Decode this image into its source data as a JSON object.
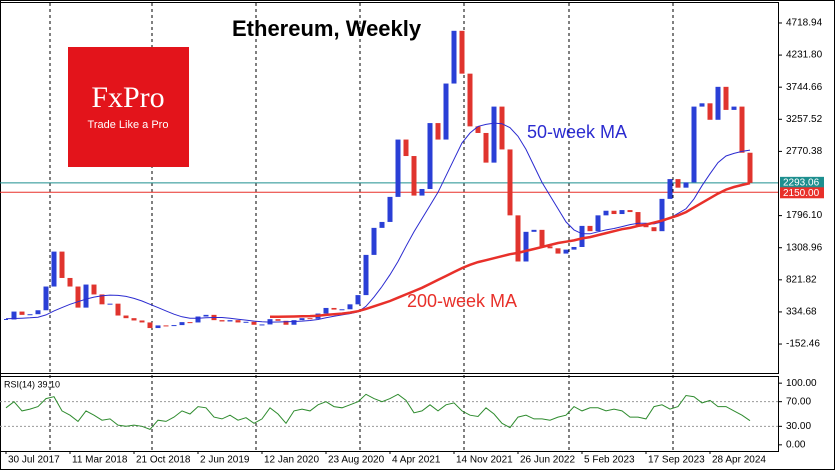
{
  "logo": {
    "name": "FxPro",
    "tagline": "Trade Like a Pro"
  },
  "chart_data": {
    "type": "candlestick",
    "title": "Ethereum, Weekly",
    "x": [
      0,
      4,
      8,
      12,
      16,
      20,
      24,
      28,
      32,
      36,
      40,
      44,
      48,
      52,
      56,
      60,
      64,
      68,
      72,
      76,
      80,
      84,
      88,
      92,
      96,
      100,
      104,
      108,
      112,
      116,
      120,
      124,
      128,
      132,
      136,
      140,
      144,
      148,
      152,
      156,
      160,
      164,
      168,
      172,
      176,
      180,
      184,
      188,
      192,
      196,
      200,
      204,
      208,
      212,
      216,
      220,
      224,
      228,
      232,
      236,
      240,
      244,
      248,
      252,
      256,
      260,
      264,
      268,
      272,
      276,
      280,
      284,
      288,
      292,
      296,
      300,
      304,
      308,
      312,
      316,
      320,
      324,
      328,
      332,
      336,
      340,
      344,
      348,
      352,
      356,
      360,
      364,
      368,
      372
    ],
    "xlim": [
      -3,
      386
    ],
    "xticks": [
      {
        "value": 0,
        "label": "30 Jul 2017"
      },
      {
        "value": 32,
        "label": "11 Mar 2018"
      },
      {
        "value": 64,
        "label": "21 Oct 2018"
      },
      {
        "value": 96,
        "label": "2 Jun 2019"
      },
      {
        "value": 128,
        "label": "12 Jan 2020"
      },
      {
        "value": 160,
        "label": "23 Aug 2020"
      },
      {
        "value": 192,
        "label": "4 Apr 2021"
      },
      {
        "value": 224,
        "label": "14 Nov 2021"
      },
      {
        "value": 256,
        "label": "26 Jun 2022"
      },
      {
        "value": 288,
        "label": "5 Feb 2023"
      },
      {
        "value": 320,
        "label": "17 Sep 2023"
      },
      {
        "value": 352,
        "label": "28 Apr 2024"
      }
    ],
    "close": [
      220,
      340,
      290,
      300,
      360,
      720,
      1250,
      850,
      720,
      400,
      750,
      600,
      450,
      460,
      280,
      240,
      205,
      175,
      90,
      130,
      120,
      135,
      180,
      175,
      265,
      290,
      210,
      190,
      210,
      175,
      185,
      140,
      145,
      225,
      200,
      140,
      210,
      240,
      230,
      310,
      395,
      370,
      375,
      450,
      590,
      1200,
      1610,
      1700,
      2080,
      2950,
      2700,
      2100,
      2200,
      3200,
      2950,
      3800,
      4600,
      3950,
      3150,
      3050,
      2600,
      3450,
      2800,
      1800,
      1100,
      1550,
      1580,
      1330,
      1300,
      1220,
      1280,
      1320,
      1640,
      1560,
      1800,
      1870,
      1820,
      1880,
      1850,
      1650,
      1620,
      1560,
      2050,
      2350,
      2220,
      2300,
      3450,
      3500,
      3250,
      3750,
      3400,
      3450,
      2750,
      2293.06
    ],
    "up_color": "#2a3fd6",
    "down_color": "#e0342e",
    "last_color": "#1d8f8f",
    "lines": [
      {
        "name": "50-week MA",
        "color": "#2b2bd0",
        "values": [
          230,
          235,
          240,
          245,
          255,
          290,
          350,
          400,
          450,
          490,
          530,
          560,
          580,
          590,
          585,
          570,
          540,
          500,
          450,
          400,
          350,
          300,
          260,
          240,
          240,
          245,
          250,
          250,
          240,
          225,
          210,
          195,
          185,
          180,
          182,
          185,
          190,
          195,
          205,
          220,
          245,
          270,
          290,
          310,
          335,
          420,
          560,
          720,
          900,
          1100,
          1330,
          1550,
          1750,
          1950,
          2150,
          2400,
          2650,
          2900,
          3050,
          3150,
          3180,
          3200,
          3190,
          3130,
          3000,
          2800,
          2550,
          2300,
          2100,
          1900,
          1700,
          1580,
          1520,
          1520,
          1550,
          1580,
          1600,
          1630,
          1660,
          1680,
          1680,
          1670,
          1700,
          1760,
          1830,
          1900,
          2050,
          2250,
          2430,
          2600,
          2700,
          2740,
          2770,
          2790
        ]
      },
      {
        "name": "200-week MA",
        "color": "#e8302a",
        "values": [
          null,
          null,
          null,
          null,
          null,
          null,
          null,
          null,
          null,
          null,
          null,
          null,
          null,
          null,
          null,
          null,
          null,
          null,
          null,
          null,
          null,
          null,
          null,
          null,
          null,
          null,
          null,
          null,
          null,
          null,
          null,
          null,
          null,
          260,
          262,
          264,
          266,
          268,
          272,
          278,
          290,
          300,
          310,
          325,
          345,
          380,
          420,
          460,
          500,
          550,
          600,
          650,
          700,
          760,
          820,
          880,
          940,
          1000,
          1050,
          1090,
          1120,
          1150,
          1180,
          1210,
          1230,
          1260,
          1290,
          1320,
          1350,
          1380,
          1400,
          1420,
          1450,
          1470,
          1500,
          1530,
          1560,
          1590,
          1610,
          1640,
          1660,
          1690,
          1720,
          1760,
          1800,
          1850,
          1920,
          1990,
          2060,
          2130,
          2190,
          2230,
          2260,
          2290
        ]
      }
    ],
    "hline": {
      "value": 2150,
      "label": "2150.00",
      "color": "#e8302a"
    },
    "ylim": [
      -592,
      5022
    ],
    "yticks": [
      4718.94,
      {
        "value": 4231.8,
        "label": "4231.80"
      },
      3744.66,
      3257.52,
      2770.38,
      {
        "value": 1796.1,
        "label": "1796.10"
      },
      1308.96,
      821.82,
      334.68,
      -152.46
    ],
    "rsi": {
      "label": "RSI(14) 39.10",
      "color": "#2e8b2e",
      "values": [
        60,
        70,
        55,
        58,
        62,
        75,
        78,
        55,
        48,
        38,
        55,
        48,
        40,
        42,
        32,
        30,
        32,
        30,
        25,
        40,
        38,
        45,
        55,
        50,
        62,
        60,
        45,
        42,
        48,
        40,
        44,
        35,
        42,
        60,
        50,
        35,
        55,
        58,
        55,
        65,
        70,
        62,
        60,
        65,
        70,
        82,
        75,
        70,
        75,
        82,
        72,
        52,
        55,
        65,
        55,
        65,
        68,
        55,
        48,
        46,
        60,
        50,
        35,
        28,
        45,
        48,
        42,
        42,
        40,
        45,
        48,
        62,
        55,
        60,
        60,
        55,
        58,
        55,
        45,
        45,
        42,
        62,
        65,
        58,
        62,
        80,
        78,
        68,
        72,
        62,
        62,
        55,
        48,
        39.1
      ],
      "ylim": [
        -10,
        110
      ],
      "yticks": [
        {
          "value": 100,
          "label": "100.00"
        },
        {
          "value": 70,
          "label": "70.00"
        },
        {
          "value": 30,
          "label": "30.00"
        },
        {
          "value": 0,
          "label": "0.00"
        }
      ]
    }
  }
}
